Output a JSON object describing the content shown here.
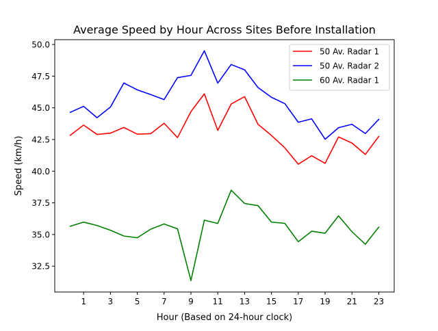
{
  "chart_data": {
    "type": "line",
    "title": "Average Speed by Hour Across Sites Before Installation",
    "xlabel": "Hour (Based on 24-hour clock)",
    "ylabel": "Speed (km/h)",
    "x": [
      0,
      1,
      2,
      3,
      4,
      5,
      6,
      7,
      8,
      9,
      10,
      11,
      12,
      13,
      14,
      15,
      16,
      17,
      18,
      19,
      20,
      21,
      22,
      23
    ],
    "xticks": [
      "1",
      "3",
      "5",
      "7",
      "9",
      "11",
      "13",
      "15",
      "17",
      "19",
      "21",
      "23"
    ],
    "yticks": [
      "32.5",
      "35.0",
      "37.5",
      "40.0",
      "42.5",
      "45.0",
      "47.5",
      "50.0"
    ],
    "xlim": [
      -1.15,
      24.15
    ],
    "ylim": [
      30.46,
      50.38
    ],
    "grid": false,
    "legend_position": "upper right",
    "series": [
      {
        "name": "50 Av. Radar 1",
        "color": "#ff0000",
        "values": [
          42.83,
          43.64,
          42.9,
          43.0,
          43.45,
          42.92,
          42.96,
          43.78,
          42.65,
          44.7,
          46.1,
          43.22,
          45.3,
          45.88,
          43.7,
          42.82,
          41.84,
          40.55,
          41.22,
          40.62,
          42.7,
          42.22,
          41.32,
          42.74
        ]
      },
      {
        "name": "50 Av. Radar 2",
        "color": "#0000ff",
        "values": [
          44.64,
          45.12,
          44.22,
          45.06,
          46.96,
          46.42,
          46.05,
          45.65,
          47.38,
          47.56,
          49.5,
          46.95,
          48.42,
          48.0,
          46.6,
          45.83,
          45.33,
          43.86,
          44.13,
          42.52,
          43.43,
          43.7,
          42.97,
          44.09
        ]
      },
      {
        "name": "60 Av. Radar 1",
        "color": "#008000",
        "values": [
          35.65,
          35.98,
          35.71,
          35.34,
          34.88,
          34.74,
          35.42,
          35.83,
          35.45,
          31.36,
          36.13,
          35.87,
          38.5,
          37.45,
          37.28,
          35.98,
          35.88,
          34.43,
          35.26,
          35.1,
          36.47,
          35.22,
          34.23,
          35.58
        ]
      }
    ]
  }
}
